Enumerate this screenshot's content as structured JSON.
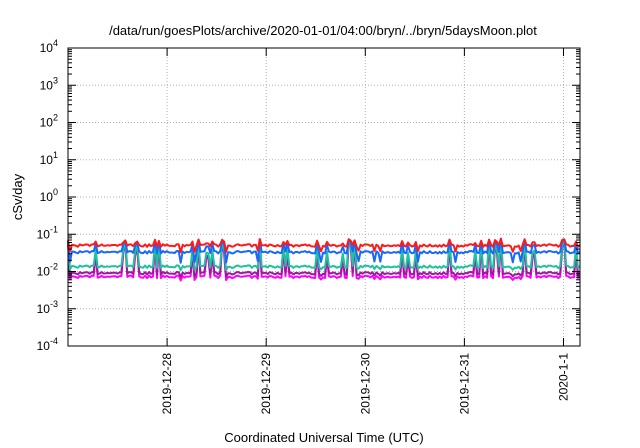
{
  "chart_data": {
    "type": "line",
    "title": "/data/run/goesPlots/archive/2020-01-01/04:00/bryn/../bryn/5daysMoon.plot",
    "xlabel": "Coordinated Universal Time (UTC)",
    "ylabel": "cSv/day",
    "yscale": "log",
    "ylim": [
      0.0001,
      10000
    ],
    "y_ticks": [
      {
        "base": "10",
        "exp": "-4"
      },
      {
        "base": "10",
        "exp": "-3"
      },
      {
        "base": "10",
        "exp": "-2"
      },
      {
        "base": "10",
        "exp": "-1"
      },
      {
        "base": "10",
        "exp": "0"
      },
      {
        "base": "10",
        "exp": "1"
      },
      {
        "base": "10",
        "exp": "2"
      },
      {
        "base": "10",
        "exp": "3"
      },
      {
        "base": "10",
        "exp": "4"
      }
    ],
    "xlim": [
      "2019-12-27T00:00",
      "2020-01-01T04:00"
    ],
    "x_ticks": [
      {
        "label": "2019-12-28",
        "value": "2019-12-28T00:00"
      },
      {
        "label": "2019-12-29",
        "value": "2019-12-29T00:00"
      },
      {
        "label": "2019-12-30",
        "value": "2019-12-30T00:00"
      },
      {
        "label": "2019-12-31",
        "value": "2019-12-31T00:00"
      },
      {
        "label": "2020-1-1",
        "value": "2020-01-01T00:00"
      }
    ],
    "grid": true,
    "legend": "none",
    "series": [
      {
        "color": "#ff1a1a",
        "base": 0.05,
        "spike": 1.35,
        "dip": 0.7
      },
      {
        "color": "#1a66ff",
        "base": 0.033,
        "spike": 1.9,
        "dip": 0.55
      },
      {
        "color": "#20c0a0",
        "base": 0.0135,
        "spike": 4.0,
        "dip": 0.85
      },
      {
        "color": "#9b1a9b",
        "base": 0.009,
        "spike": 5.5,
        "dip": 0.85
      },
      {
        "color": "#ff00ff",
        "base": 0.0072,
        "spike": 6.5,
        "dip": 0.85
      }
    ]
  }
}
